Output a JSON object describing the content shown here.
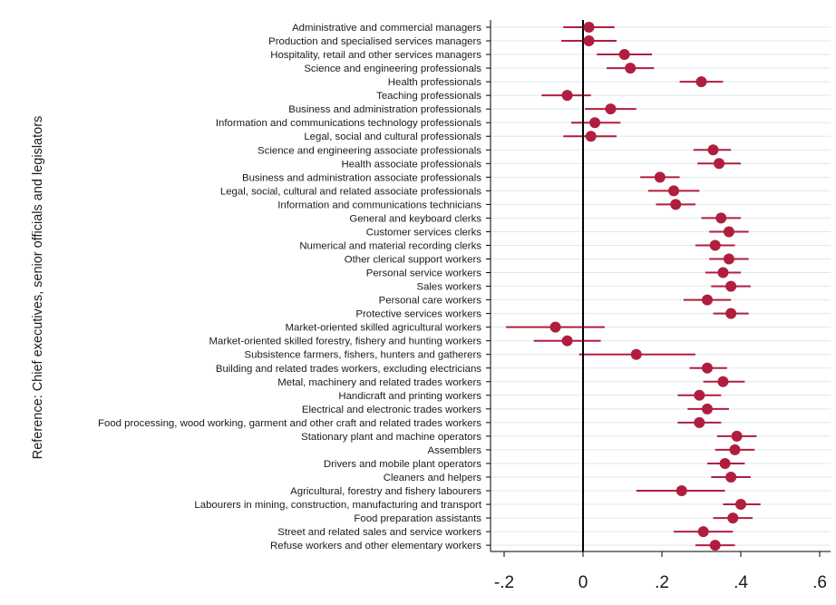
{
  "chart_data": {
    "type": "scatter",
    "subtype": "coefficient-plot-horizontal",
    "title": "",
    "xlabel": "",
    "ylabel": "Reference: Chief executives, senior officials and legislators",
    "xlim": [
      -0.25,
      0.62
    ],
    "x_ticks": [
      -0.2,
      0,
      0.2,
      0.4,
      0.6
    ],
    "x_tick_labels": [
      "-.2",
      "0",
      ".2",
      ".4",
      ".6"
    ],
    "reference_line_x": 0,
    "grid": true,
    "legend": "none",
    "colors": {
      "marker": "#b01e3f",
      "ci_line": "#b01e3f",
      "grid": "#dde8ee",
      "axis": "#000000",
      "reference_line": "#000000"
    },
    "points": [
      {
        "label": "Administrative and commercial managers",
        "estimate": 0.015,
        "ci_low": -0.05,
        "ci_high": 0.08
      },
      {
        "label": "Production and specialised services managers",
        "estimate": 0.015,
        "ci_low": -0.055,
        "ci_high": 0.085
      },
      {
        "label": "Hospitality, retail and other services managers",
        "estimate": 0.105,
        "ci_low": 0.035,
        "ci_high": 0.175
      },
      {
        "label": "Science and engineering professionals",
        "estimate": 0.12,
        "ci_low": 0.06,
        "ci_high": 0.18
      },
      {
        "label": "Health professionals",
        "estimate": 0.3,
        "ci_low": 0.245,
        "ci_high": 0.355
      },
      {
        "label": "Teaching professionals",
        "estimate": -0.04,
        "ci_low": -0.105,
        "ci_high": 0.02
      },
      {
        "label": "Business and administration professionals",
        "estimate": 0.07,
        "ci_low": 0.005,
        "ci_high": 0.135
      },
      {
        "label": "Information and communications technology professionals",
        "estimate": 0.03,
        "ci_low": -0.03,
        "ci_high": 0.095
      },
      {
        "label": "Legal, social and cultural professionals",
        "estimate": 0.02,
        "ci_low": -0.05,
        "ci_high": 0.085
      },
      {
        "label": "Science and engineering associate professionals",
        "estimate": 0.33,
        "ci_low": 0.28,
        "ci_high": 0.375
      },
      {
        "label": "Health associate professionals",
        "estimate": 0.345,
        "ci_low": 0.29,
        "ci_high": 0.4
      },
      {
        "label": "Business and administration associate professionals",
        "estimate": 0.195,
        "ci_low": 0.145,
        "ci_high": 0.245
      },
      {
        "label": "Legal, social, cultural and related associate professionals",
        "estimate": 0.23,
        "ci_low": 0.165,
        "ci_high": 0.295
      },
      {
        "label": "Information and communications technicians",
        "estimate": 0.235,
        "ci_low": 0.185,
        "ci_high": 0.285
      },
      {
        "label": "General and keyboard clerks",
        "estimate": 0.35,
        "ci_low": 0.3,
        "ci_high": 0.4
      },
      {
        "label": "Customer services clerks",
        "estimate": 0.37,
        "ci_low": 0.32,
        "ci_high": 0.42
      },
      {
        "label": "Numerical and material recording clerks",
        "estimate": 0.335,
        "ci_low": 0.285,
        "ci_high": 0.385
      },
      {
        "label": "Other clerical support workers",
        "estimate": 0.37,
        "ci_low": 0.32,
        "ci_high": 0.42
      },
      {
        "label": "Personal service workers",
        "estimate": 0.355,
        "ci_low": 0.31,
        "ci_high": 0.4
      },
      {
        "label": "Sales workers",
        "estimate": 0.375,
        "ci_low": 0.325,
        "ci_high": 0.425
      },
      {
        "label": "Personal care workers",
        "estimate": 0.315,
        "ci_low": 0.255,
        "ci_high": 0.375
      },
      {
        "label": "Protective services workers",
        "estimate": 0.375,
        "ci_low": 0.33,
        "ci_high": 0.42
      },
      {
        "label": "Market-oriented skilled agricultural workers",
        "estimate": -0.07,
        "ci_low": -0.195,
        "ci_high": 0.055
      },
      {
        "label": "Market-oriented skilled forestry, fishery and hunting workers",
        "estimate": -0.04,
        "ci_low": -0.125,
        "ci_high": 0.045
      },
      {
        "label": "Subsistence farmers, fishers, hunters and gatherers",
        "estimate": 0.135,
        "ci_low": -0.01,
        "ci_high": 0.285
      },
      {
        "label": "Building and related trades workers, excluding electricians",
        "estimate": 0.315,
        "ci_low": 0.27,
        "ci_high": 0.365
      },
      {
        "label": "Metal, machinery and related trades workers",
        "estimate": 0.355,
        "ci_low": 0.305,
        "ci_high": 0.41
      },
      {
        "label": "Handicraft and printing workers",
        "estimate": 0.295,
        "ci_low": 0.24,
        "ci_high": 0.35
      },
      {
        "label": "Electrical and electronic trades workers",
        "estimate": 0.315,
        "ci_low": 0.265,
        "ci_high": 0.37
      },
      {
        "label": "Food processing, wood working, garment and other craft and related trades workers",
        "estimate": 0.295,
        "ci_low": 0.24,
        "ci_high": 0.35
      },
      {
        "label": "Stationary plant and machine operators",
        "estimate": 0.39,
        "ci_low": 0.34,
        "ci_high": 0.44
      },
      {
        "label": "Assemblers",
        "estimate": 0.385,
        "ci_low": 0.335,
        "ci_high": 0.435
      },
      {
        "label": "Drivers and mobile plant operators",
        "estimate": 0.36,
        "ci_low": 0.315,
        "ci_high": 0.41
      },
      {
        "label": "Cleaners and helpers",
        "estimate": 0.375,
        "ci_low": 0.325,
        "ci_high": 0.425
      },
      {
        "label": "Agricultural, forestry and fishery labourers",
        "estimate": 0.25,
        "ci_low": 0.135,
        "ci_high": 0.36
      },
      {
        "label": "Labourers in mining, construction, manufacturing and transport",
        "estimate": 0.4,
        "ci_low": 0.355,
        "ci_high": 0.45
      },
      {
        "label": "Food preparation assistants",
        "estimate": 0.38,
        "ci_low": 0.33,
        "ci_high": 0.43
      },
      {
        "label": "Street and related sales and service workers",
        "estimate": 0.305,
        "ci_low": 0.23,
        "ci_high": 0.38
      },
      {
        "label": "Refuse workers and other elementary workers",
        "estimate": 0.335,
        "ci_low": 0.285,
        "ci_high": 0.385
      }
    ]
  }
}
